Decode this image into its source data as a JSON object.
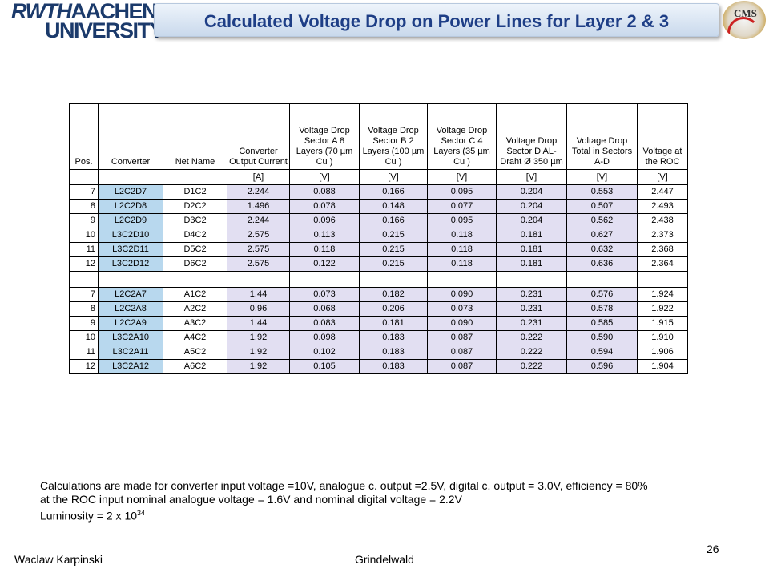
{
  "header": {
    "logo_line1_a": "RWTH",
    "logo_line1_b": "AACHEN",
    "logo_line2": "UNIVERSITY",
    "title": "Calculated Voltage Drop on Power Lines for Layer 2 & 3",
    "cms_logo_text": "CMS"
  },
  "table": {
    "columns": [
      "Pos.",
      "Converter",
      "Net Name",
      "Converter Output Current",
      "Voltage Drop Sector A 8 Layers (70 µm Cu )",
      "Voltage Drop Sector B 2 Layers (100 µm Cu )",
      "Voltage Drop Sector C 4 Layers (35 µm Cu )",
      "Voltage Drop Sector D AL-Draht Ø 350 µm",
      "Voltage Drop Total in Sectors A-D",
      "Voltage at the ROC"
    ],
    "units": [
      "",
      "",
      "",
      "[A]",
      "[V]",
      "[V]",
      "[V]",
      "[V]",
      "[V]",
      "[V]"
    ],
    "group1": [
      [
        "7",
        "L2C2D7",
        "D1C2",
        "2.244",
        "0.088",
        "0.166",
        "0.095",
        "0.204",
        "0.553",
        "2.447"
      ],
      [
        "8",
        "L2C2D8",
        "D2C2",
        "1.496",
        "0.078",
        "0.148",
        "0.077",
        "0.204",
        "0.507",
        "2.493"
      ],
      [
        "9",
        "L2C2D9",
        "D3C2",
        "2.244",
        "0.096",
        "0.166",
        "0.095",
        "0.204",
        "0.562",
        "2.438"
      ],
      [
        "10",
        "L3C2D10",
        "D4C2",
        "2.575",
        "0.113",
        "0.215",
        "0.118",
        "0.181",
        "0.627",
        "2.373"
      ],
      [
        "11",
        "L3C2D11",
        "D5C2",
        "2.575",
        "0.118",
        "0.215",
        "0.118",
        "0.181",
        "0.632",
        "2.368"
      ],
      [
        "12",
        "L3C2D12",
        "D6C2",
        "2.575",
        "0.122",
        "0.215",
        "0.118",
        "0.181",
        "0.636",
        "2.364"
      ]
    ],
    "group2": [
      [
        "7",
        "L2C2A7",
        "A1C2",
        "1.44",
        "0.073",
        "0.182",
        "0.090",
        "0.231",
        "0.576",
        "1.924"
      ],
      [
        "8",
        "L2C2A8",
        "A2C2",
        "0.96",
        "0.068",
        "0.206",
        "0.073",
        "0.231",
        "0.578",
        "1.922"
      ],
      [
        "9",
        "L2C2A9",
        "A3C2",
        "1.44",
        "0.083",
        "0.181",
        "0.090",
        "0.231",
        "0.585",
        "1.915"
      ],
      [
        "10",
        "L3C2A10",
        "A4C2",
        "1.92",
        "0.098",
        "0.183",
        "0.087",
        "0.222",
        "0.590",
        "1.910"
      ],
      [
        "11",
        "L3C2A11",
        "A5C2",
        "1.92",
        "0.102",
        "0.183",
        "0.087",
        "0.222",
        "0.594",
        "1.906"
      ],
      [
        "12",
        "L3C2A12",
        "A6C2",
        "1.92",
        "0.105",
        "0.183",
        "0.087",
        "0.222",
        "0.596",
        "1.904"
      ]
    ]
  },
  "notes": {
    "line1": "Calculations are made for converter input voltage =10V,  analogue c. output =2.5V, digital c. output = 3.0V, efficiency = 80%",
    "line2": "at the ROC input nominal analogue voltage = 1.6V and  nominal digital voltage = 2.2V",
    "line3_base": "Luminosity = 2 x 10",
    "line3_exp": "34"
  },
  "footer": {
    "author": "Waclaw Karpinski",
    "location": "Grindelwald",
    "page": "26"
  },
  "colors": {
    "title_text": "#1e3e86",
    "converter_cell": "#b8d8ee",
    "value_cell": "#e2dff2"
  }
}
